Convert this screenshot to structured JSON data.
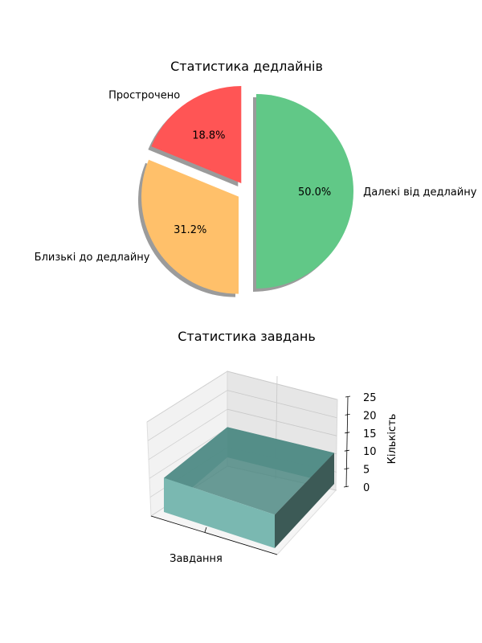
{
  "chart_data": [
    {
      "type": "pie",
      "title": "Статистика дедлайнів",
      "slices": [
        {
          "label": "Прострочено",
          "value": 18.8,
          "pct_label": "18.8%",
          "color": "#ff5555",
          "exploded": true
        },
        {
          "label": "Близькі до дедлайну",
          "value": 31.2,
          "pct_label": "31.2%",
          "color": "#ffc06a",
          "exploded": true
        },
        {
          "label": "Далекі від дедлайну",
          "value": 50.0,
          "pct_label": "50.0%",
          "color": "#61c887",
          "exploded": true
        }
      ],
      "shadow": true
    },
    {
      "type": "bar3d",
      "title": "Статистика завдань",
      "categories": [
        "Завдання"
      ],
      "xlabel": "Завдання",
      "zlabel": "Кількість",
      "zlim": [
        0,
        25
      ],
      "zticks": [
        "0",
        "5",
        "10",
        "15",
        "20",
        "25"
      ],
      "values": [
        {
          "category": "Завдання",
          "value": 10
        }
      ],
      "bar_color": "#7ab8b1",
      "grid": true
    }
  ]
}
